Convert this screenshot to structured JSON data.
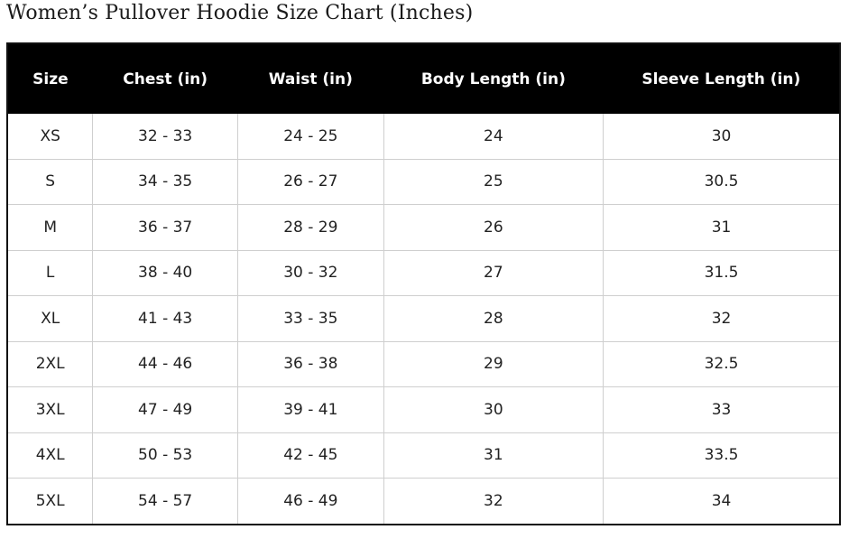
{
  "title": "Women’s Pullover Hoodie Size Chart (Inches)",
  "table": {
    "headers": [
      "Size",
      "Chest (in)",
      "Waist (in)",
      "Body Length (in)",
      "Sleeve Length (in)"
    ],
    "rows": [
      [
        "XS",
        "32 - 33",
        "24 - 25",
        "24",
        "30"
      ],
      [
        "S",
        "34 - 35",
        "26 - 27",
        "25",
        "30.5"
      ],
      [
        "M",
        "36 - 37",
        "28 - 29",
        "26",
        "31"
      ],
      [
        "L",
        "38 - 40",
        "30 - 32",
        "27",
        "31.5"
      ],
      [
        "XL",
        "41 - 43",
        "33 - 35",
        "28",
        "32"
      ],
      [
        "2XL",
        "44 - 46",
        "36 - 38",
        "29",
        "32.5"
      ],
      [
        "3XL",
        "47 - 49",
        "39 - 41",
        "30",
        "33"
      ],
      [
        "4XL",
        "50 - 53",
        "42 - 45",
        "31",
        "33.5"
      ],
      [
        "5XL",
        "54 - 57",
        "46 - 49",
        "32",
        "34"
      ]
    ]
  },
  "colors": {
    "header_bg": "#000000",
    "header_text": "#ffffff",
    "grid": "#cfcfcf"
  }
}
